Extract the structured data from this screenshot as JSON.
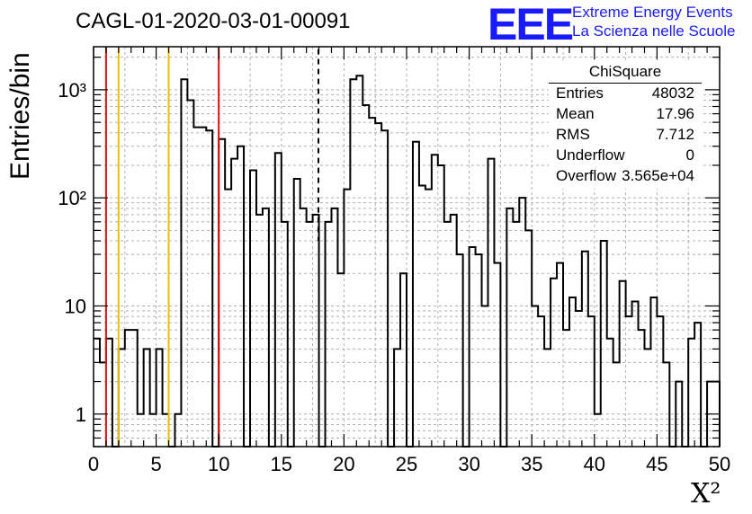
{
  "header": {
    "title": "CAGL-01-2020-03-01-00091"
  },
  "logo": {
    "mark": "EEE",
    "line1": "Extreme Energy Events",
    "line2": "La Scienza nelle Scuole"
  },
  "stats": {
    "name": "ChiSquare",
    "rows": [
      {
        "key": "Entries",
        "value": "48032"
      },
      {
        "key": "Mean",
        "value": "17.96"
      },
      {
        "key": "RMS",
        "value": "7.712"
      },
      {
        "key": "Underflow",
        "value": "0"
      },
      {
        "key": "Overflow",
        "value": "3.565e+04"
      }
    ]
  },
  "colors": {
    "red_line": "#e01010",
    "yellow_line": "#f0c000",
    "grid": "#b0b0b0",
    "histogram": "#000000",
    "logo": "#1a1aff"
  },
  "chart_data": {
    "type": "bar",
    "subtype": "histogram",
    "title": "CAGL-01-2020-03-01-00091",
    "xlabel": "X²",
    "ylabel": "Entries/bin",
    "xlim": [
      0,
      50
    ],
    "ylim": [
      0.5,
      2500
    ],
    "yscale": "log",
    "grid": true,
    "bin_width": 0.5,
    "xticks": [
      0,
      5,
      10,
      15,
      20,
      25,
      30,
      35,
      40,
      45,
      50
    ],
    "yticks": [
      {
        "value": 1,
        "label": "1"
      },
      {
        "value": 10,
        "label": "10"
      },
      {
        "value": 100,
        "label": "10²"
      },
      {
        "value": 1000,
        "label": "10³"
      }
    ],
    "values": [
      5,
      3,
      5,
      0,
      4,
      6,
      6,
      1,
      4,
      1,
      4,
      1,
      0,
      1,
      1250,
      800,
      450,
      450,
      420,
      0,
      350,
      120,
      230,
      300,
      0,
      180,
      70,
      80,
      0,
      260,
      60,
      0,
      150,
      80,
      60,
      70,
      0,
      60,
      80,
      20,
      120,
      1250,
      1350,
      720,
      550,
      490,
      420,
      0,
      4,
      20,
      0,
      330,
      130,
      120,
      250,
      200,
      60,
      70,
      30,
      0,
      35,
      30,
      10,
      230,
      25,
      0,
      80,
      60,
      100,
      50,
      10,
      8,
      4,
      18,
      25,
      6,
      12,
      9,
      32,
      8,
      1,
      40,
      5,
      3,
      17,
      8,
      11,
      6,
      4,
      12,
      8,
      3,
      0,
      2,
      0,
      5,
      7,
      0,
      2,
      2
    ],
    "vlines": [
      {
        "x": 1,
        "color": "red",
        "style": "solid"
      },
      {
        "x": 2,
        "color": "yellow",
        "style": "solid"
      },
      {
        "x": 6,
        "color": "yellow",
        "style": "solid"
      },
      {
        "x": 10,
        "color": "red",
        "style": "solid"
      },
      {
        "x": 17.96,
        "color": "black",
        "style": "dashed"
      }
    ],
    "stats_box": "top-right"
  }
}
